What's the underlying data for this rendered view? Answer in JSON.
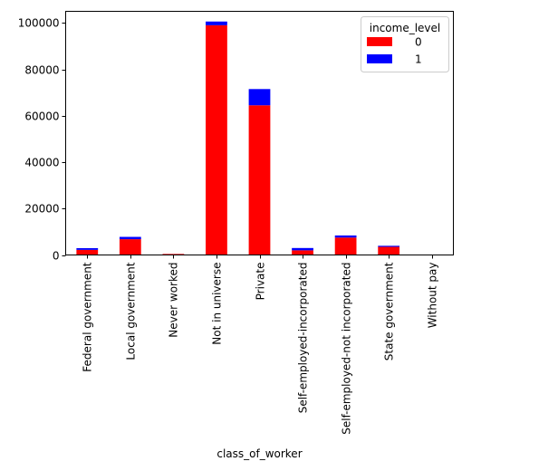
{
  "chart_data": {
    "type": "bar",
    "stacked": true,
    "categories": [
      "Federal government",
      "Local government",
      "Never worked",
      "Not in universe",
      "Private",
      "Self-employed-incorporated",
      "Self-employed-not incorporated",
      "State government",
      "Without pay"
    ],
    "series": [
      {
        "name": "0",
        "color": "#ff0000",
        "values": [
          2200,
          6800,
          430,
          99000,
          64500,
          2000,
          7500,
          3500,
          160
        ]
      },
      {
        "name": "1",
        "color": "#0000ff",
        "values": [
          750,
          1000,
          10,
          1600,
          7000,
          1000,
          900,
          450,
          5
        ]
      }
    ],
    "xlabel": "class_of_worker",
    "ylabel": "",
    "ylim": [
      0,
      105000
    ],
    "yticks": [
      0,
      20000,
      40000,
      60000,
      80000,
      100000
    ],
    "ytick_labels": [
      "0",
      "20000",
      "40000",
      "60000",
      "80000",
      "100000"
    ],
    "legend": {
      "title": "income_level",
      "placement": "top-right"
    },
    "grid": false
  }
}
